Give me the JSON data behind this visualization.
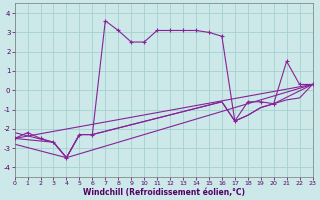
{
  "xlabel": "Windchill (Refroidissement éolien,°C)",
  "xlim": [
    0,
    23
  ],
  "ylim": [
    -4.5,
    4.5
  ],
  "xticks": [
    0,
    1,
    2,
    3,
    4,
    5,
    6,
    7,
    8,
    9,
    10,
    11,
    12,
    13,
    14,
    15,
    16,
    17,
    18,
    19,
    20,
    21,
    22,
    23
  ],
  "yticks": [
    -4,
    -3,
    -2,
    -1,
    0,
    1,
    2,
    3,
    4
  ],
  "background_color": "#cce8e8",
  "grid_color": "#9ecece",
  "line_color": "#882299",
  "curve1": {
    "x": [
      0,
      1,
      2,
      3,
      4,
      5,
      6,
      7,
      8,
      9,
      10,
      11,
      12,
      13,
      14,
      15,
      16,
      17,
      18,
      19,
      20,
      21,
      22,
      23
    ],
    "y": [
      -2.5,
      -2.2,
      -2.5,
      -2.7,
      -3.5,
      -2.3,
      -2.3,
      3.6,
      3.1,
      2.5,
      2.5,
      3.1,
      3.1,
      3.1,
      3.1,
      3.0,
      2.8,
      -1.6,
      -0.6,
      -0.6,
      -0.7,
      1.5,
      0.3,
      0.3
    ]
  },
  "line_straight": {
    "x": [
      0,
      23
    ],
    "y": [
      -2.5,
      0.3
    ]
  },
  "line_mid1": {
    "x": [
      0,
      3,
      4,
      5,
      6,
      16,
      17,
      18,
      19,
      20,
      21,
      22,
      23
    ],
    "y": [
      -2.5,
      -2.7,
      -3.5,
      -2.3,
      -2.3,
      -0.6,
      -1.6,
      -1.3,
      -0.9,
      -0.7,
      -0.5,
      -0.4,
      0.3
    ]
  },
  "line_mid2": {
    "x": [
      0,
      3,
      4,
      5,
      6,
      16,
      17,
      18,
      19,
      20,
      23
    ],
    "y": [
      -2.2,
      -2.7,
      -3.5,
      -2.3,
      -2.3,
      -0.6,
      -1.6,
      -1.3,
      -0.9,
      -0.7,
      0.3
    ]
  },
  "line_bottom": {
    "x": [
      0,
      4,
      23
    ],
    "y": [
      -2.8,
      -3.5,
      0.3
    ]
  }
}
